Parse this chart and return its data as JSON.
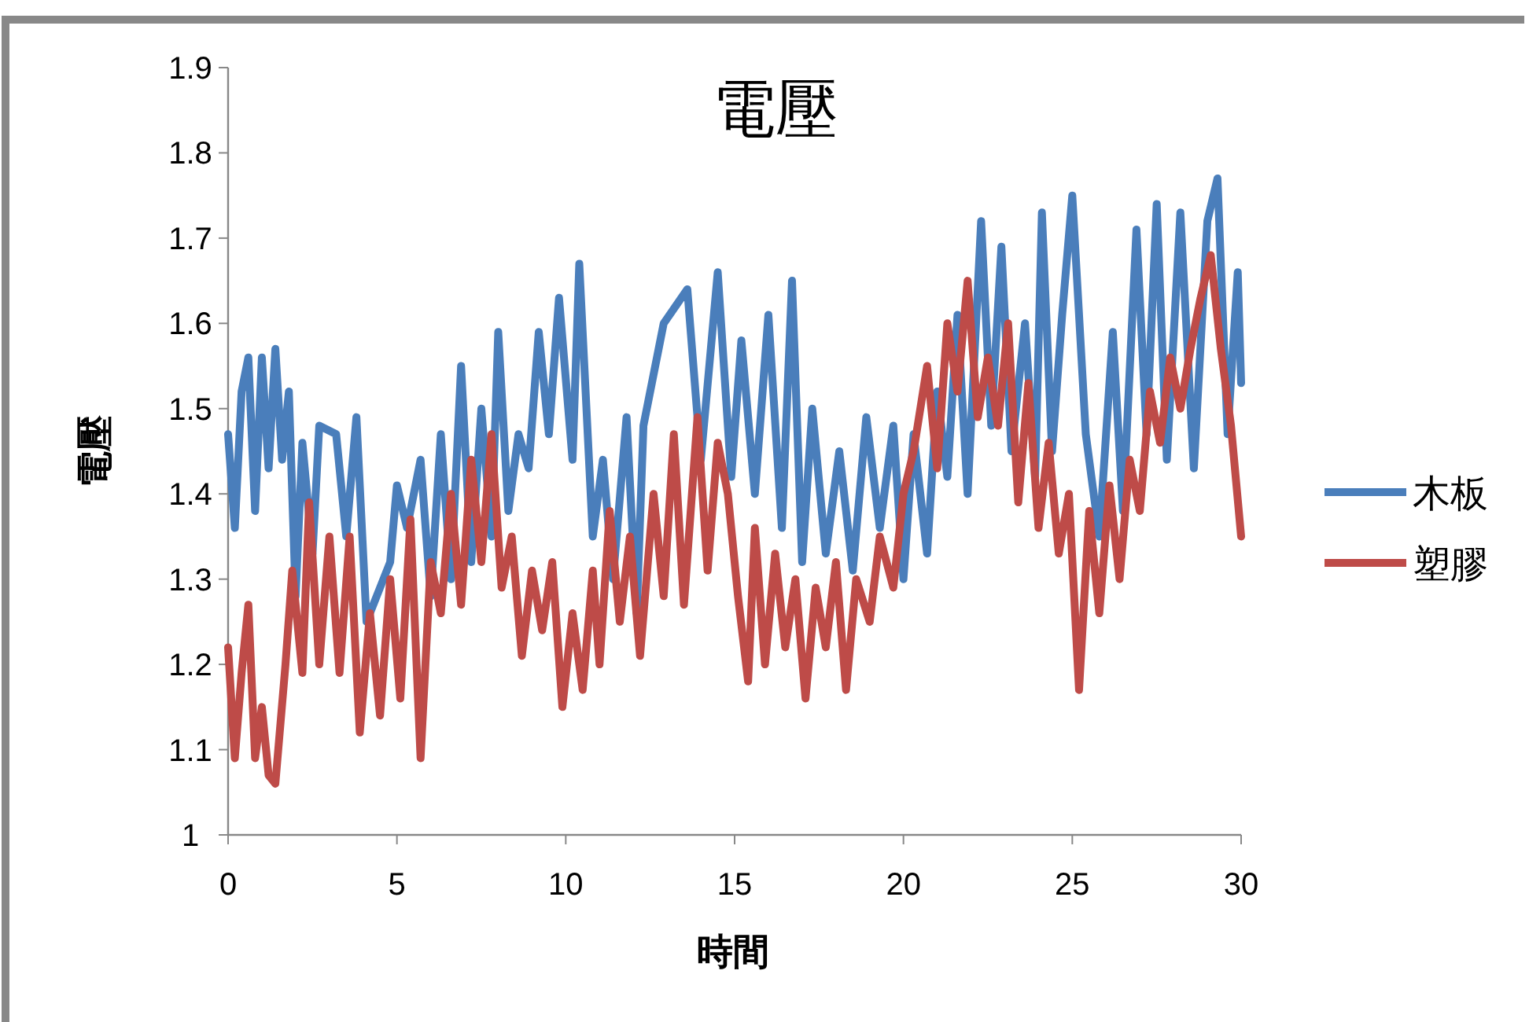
{
  "chart_data": {
    "type": "line",
    "title": "電壓",
    "xlabel": "時間",
    "ylabel": "電壓",
    "xlim": [
      0,
      30
    ],
    "xticks": [
      0,
      5,
      10,
      15,
      20,
      25,
      30
    ],
    "ylim": [
      1,
      1.9
    ],
    "yticks": [
      1,
      1.1,
      1.2,
      1.3,
      1.4,
      1.5,
      1.6,
      1.7,
      1.8,
      1.9
    ],
    "grid": false,
    "legend": "right",
    "series": [
      {
        "name": "木板",
        "color": "#4a7ebb",
        "x": [
          0,
          0.2,
          0.4,
          0.6,
          0.8,
          1.0,
          1.2,
          1.4,
          1.6,
          1.8,
          2.0,
          2.2,
          2.5,
          2.7,
          3.2,
          3.5,
          3.8,
          4.1,
          4.5,
          4.8,
          5.0,
          5.3,
          5.7,
          6.0,
          6.3,
          6.6,
          6.9,
          7.2,
          7.5,
          7.8,
          8.0,
          8.3,
          8.6,
          8.9,
          9.2,
          9.5,
          9.8,
          10.2,
          10.4,
          10.8,
          11.1,
          11.4,
          11.8,
          12.1,
          12.3,
          12.9,
          13.6,
          14.0,
          14.5,
          14.9,
          15.2,
          15.6,
          16.0,
          16.4,
          16.7,
          17.0,
          17.3,
          17.7,
          18.1,
          18.5,
          18.9,
          19.3,
          19.7,
          20.0,
          20.3,
          20.7,
          21.0,
          21.3,
          21.6,
          21.9,
          22.3,
          22.6,
          22.9,
          23.2,
          23.6,
          23.9,
          24.1,
          24.4,
          24.7,
          25.0,
          25.4,
          25.8,
          26.2,
          26.5,
          26.9,
          27.2,
          27.5,
          27.8,
          28.2,
          28.6,
          29.0,
          29.3,
          29.6,
          29.9,
          30
        ],
        "values": [
          1.47,
          1.36,
          1.52,
          1.56,
          1.38,
          1.56,
          1.43,
          1.57,
          1.44,
          1.52,
          1.28,
          1.46,
          1.33,
          1.48,
          1.47,
          1.35,
          1.49,
          1.25,
          1.29,
          1.32,
          1.41,
          1.36,
          1.44,
          1.28,
          1.47,
          1.3,
          1.55,
          1.32,
          1.5,
          1.35,
          1.59,
          1.38,
          1.47,
          1.43,
          1.59,
          1.47,
          1.63,
          1.44,
          1.67,
          1.35,
          1.44,
          1.3,
          1.49,
          1.26,
          1.48,
          1.6,
          1.64,
          1.44,
          1.66,
          1.42,
          1.58,
          1.4,
          1.61,
          1.36,
          1.65,
          1.32,
          1.5,
          1.33,
          1.45,
          1.31,
          1.49,
          1.36,
          1.48,
          1.3,
          1.47,
          1.33,
          1.52,
          1.42,
          1.61,
          1.4,
          1.72,
          1.48,
          1.69,
          1.45,
          1.6,
          1.42,
          1.73,
          1.45,
          1.61,
          1.75,
          1.47,
          1.35,
          1.59,
          1.38,
          1.71,
          1.47,
          1.74,
          1.44,
          1.73,
          1.43,
          1.72,
          1.77,
          1.47,
          1.66,
          1.53
        ]
      },
      {
        "name": "塑膠",
        "color": "#be4b48",
        "x": [
          0,
          0.2,
          0.4,
          0.6,
          0.8,
          1.0,
          1.2,
          1.4,
          1.7,
          1.9,
          2.2,
          2.4,
          2.7,
          3.0,
          3.3,
          3.6,
          3.9,
          4.2,
          4.5,
          4.8,
          5.1,
          5.4,
          5.7,
          6.0,
          6.3,
          6.6,
          6.9,
          7.2,
          7.5,
          7.8,
          8.1,
          8.4,
          8.7,
          9.0,
          9.3,
          9.6,
          9.9,
          10.2,
          10.5,
          10.8,
          11.0,
          11.3,
          11.6,
          11.9,
          12.2,
          12.6,
          12.9,
          13.2,
          13.5,
          13.9,
          14.2,
          14.5,
          14.8,
          15.1,
          15.4,
          15.6,
          15.9,
          16.2,
          16.5,
          16.8,
          17.1,
          17.4,
          17.7,
          18.0,
          18.3,
          18.6,
          19.0,
          19.3,
          19.7,
          20.0,
          20.3,
          20.7,
          21.0,
          21.3,
          21.6,
          21.9,
          22.2,
          22.5,
          22.8,
          23.1,
          23.4,
          23.7,
          24.0,
          24.3,
          24.6,
          24.9,
          25.2,
          25.5,
          25.8,
          26.1,
          26.4,
          26.7,
          27.0,
          27.3,
          27.6,
          27.9,
          28.2,
          28.5,
          28.8,
          29.1,
          29.4,
          29.7,
          30
        ],
        "values": [
          1.22,
          1.09,
          1.19,
          1.27,
          1.09,
          1.15,
          1.07,
          1.06,
          1.2,
          1.31,
          1.19,
          1.39,
          1.2,
          1.35,
          1.19,
          1.35,
          1.12,
          1.26,
          1.14,
          1.3,
          1.16,
          1.37,
          1.09,
          1.32,
          1.26,
          1.4,
          1.27,
          1.44,
          1.32,
          1.47,
          1.29,
          1.35,
          1.21,
          1.31,
          1.24,
          1.32,
          1.15,
          1.26,
          1.17,
          1.31,
          1.2,
          1.38,
          1.25,
          1.35,
          1.21,
          1.4,
          1.28,
          1.47,
          1.27,
          1.49,
          1.31,
          1.46,
          1.4,
          1.28,
          1.18,
          1.36,
          1.2,
          1.33,
          1.22,
          1.3,
          1.16,
          1.29,
          1.22,
          1.32,
          1.17,
          1.3,
          1.25,
          1.35,
          1.29,
          1.4,
          1.45,
          1.55,
          1.43,
          1.6,
          1.52,
          1.65,
          1.49,
          1.56,
          1.48,
          1.6,
          1.39,
          1.53,
          1.36,
          1.46,
          1.33,
          1.4,
          1.17,
          1.38,
          1.26,
          1.41,
          1.3,
          1.44,
          1.38,
          1.52,
          1.46,
          1.56,
          1.5,
          1.57,
          1.63,
          1.68,
          1.57,
          1.48,
          1.35
        ]
      }
    ]
  }
}
